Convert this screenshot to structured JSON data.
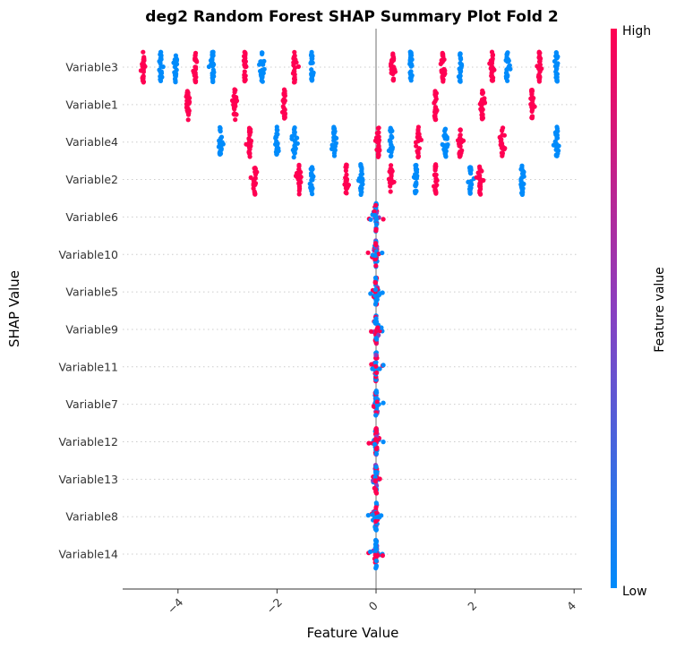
{
  "chart_data": {
    "type": "scatter",
    "subtype": "shap-summary-beeswarm",
    "title": "deg2 Random Forest SHAP Summary Plot Fold 2",
    "xlabel": "Feature Value",
    "ylabel": "SHAP Value",
    "xlim": [
      -5.1,
      4.1
    ],
    "xticks": [
      -4,
      -2,
      0,
      2,
      4
    ],
    "xtick_labels": [
      "−4",
      "−2",
      "0",
      "2",
      "4"
    ],
    "grid": false,
    "zero_line": true,
    "colorbar": {
      "label": "Feature value",
      "high_label": "High",
      "low_label": "Low",
      "high_color": "#ff0052",
      "low_color": "#008bfb"
    },
    "features": [
      {
        "name": "Variable3",
        "clusters": [
          {
            "x": -4.7,
            "level": "high"
          },
          {
            "x": -4.35,
            "level": "low"
          },
          {
            "x": -4.05,
            "level": "low"
          },
          {
            "x": -3.65,
            "level": "high"
          },
          {
            "x": -3.3,
            "level": "low"
          },
          {
            "x": -2.65,
            "level": "high"
          },
          {
            "x": -2.3,
            "level": "low"
          },
          {
            "x": -1.65,
            "level": "high"
          },
          {
            "x": -1.3,
            "level": "low"
          },
          {
            "x": 0.35,
            "level": "high"
          },
          {
            "x": 0.7,
            "level": "low"
          },
          {
            "x": 1.35,
            "level": "high"
          },
          {
            "x": 1.7,
            "level": "low"
          },
          {
            "x": 2.35,
            "level": "high"
          },
          {
            "x": 2.65,
            "level": "low"
          },
          {
            "x": 3.3,
            "level": "high"
          },
          {
            "x": 3.65,
            "level": "low"
          }
        ]
      },
      {
        "name": "Variable1",
        "clusters": [
          {
            "x": -3.8,
            "level": "high"
          },
          {
            "x": -2.85,
            "level": "high"
          },
          {
            "x": -1.85,
            "level": "high"
          },
          {
            "x": 1.2,
            "level": "high"
          },
          {
            "x": 2.15,
            "level": "high"
          },
          {
            "x": 3.15,
            "level": "high"
          }
        ]
      },
      {
        "name": "Variable4",
        "clusters": [
          {
            "x": -3.15,
            "level": "low"
          },
          {
            "x": -2.55,
            "level": "high"
          },
          {
            "x": -2.0,
            "level": "low"
          },
          {
            "x": -1.65,
            "level": "low"
          },
          {
            "x": -0.85,
            "level": "low"
          },
          {
            "x": 0.05,
            "level": "high"
          },
          {
            "x": 0.3,
            "level": "low"
          },
          {
            "x": 0.85,
            "level": "high"
          },
          {
            "x": 1.4,
            "level": "low"
          },
          {
            "x": 1.7,
            "level": "high"
          },
          {
            "x": 2.55,
            "level": "high"
          },
          {
            "x": 3.65,
            "level": "low"
          }
        ]
      },
      {
        "name": "Variable2",
        "clusters": [
          {
            "x": -2.45,
            "level": "high"
          },
          {
            "x": -1.55,
            "level": "high"
          },
          {
            "x": -1.3,
            "level": "low"
          },
          {
            "x": -0.6,
            "level": "high"
          },
          {
            "x": -0.3,
            "level": "low"
          },
          {
            "x": 0.3,
            "level": "high"
          },
          {
            "x": 0.8,
            "level": "low"
          },
          {
            "x": 1.2,
            "level": "high"
          },
          {
            "x": 1.9,
            "level": "low"
          },
          {
            "x": 2.1,
            "level": "high"
          },
          {
            "x": 2.95,
            "level": "low"
          }
        ]
      },
      {
        "name": "Variable6",
        "clusters": [
          {
            "x": 0.0,
            "level": "mixed"
          }
        ]
      },
      {
        "name": "Variable10",
        "clusters": [
          {
            "x": 0.0,
            "level": "mixed"
          }
        ]
      },
      {
        "name": "Variable5",
        "clusters": [
          {
            "x": 0.0,
            "level": "mixed"
          }
        ]
      },
      {
        "name": "Variable9",
        "clusters": [
          {
            "x": 0.0,
            "level": "mixed"
          }
        ]
      },
      {
        "name": "Variable11",
        "clusters": [
          {
            "x": 0.0,
            "level": "mixed"
          }
        ]
      },
      {
        "name": "Variable7",
        "clusters": [
          {
            "x": 0.0,
            "level": "mixed"
          }
        ]
      },
      {
        "name": "Variable12",
        "clusters": [
          {
            "x": 0.0,
            "level": "mixed"
          }
        ]
      },
      {
        "name": "Variable13",
        "clusters": [
          {
            "x": 0.0,
            "level": "mixed"
          }
        ]
      },
      {
        "name": "Variable8",
        "clusters": [
          {
            "x": 0.0,
            "level": "mixed"
          }
        ]
      },
      {
        "name": "Variable14",
        "clusters": [
          {
            "x": 0.0,
            "level": "mixed"
          }
        ]
      }
    ]
  }
}
